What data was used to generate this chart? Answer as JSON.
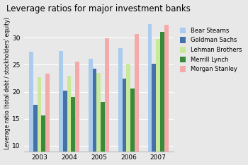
{
  "title": "Leverage ratios for major investment banks",
  "ylabel": "Leverage ratio (total debt / stockholders' equity)",
  "years": [
    2003,
    2004,
    2005,
    2006,
    2007
  ],
  "companies": [
    "Bear Stearns",
    "Goldman Sachs",
    "Lehman Brothers",
    "Merrill Lynch",
    "Morgan Stanley"
  ],
  "colors": [
    "#aaccee",
    "#4472a8",
    "#c8e89a",
    "#3a8a3a",
    "#f4aaaa"
  ],
  "data": {
    "Bear Stearns": [
      27.4,
      27.5,
      26.1,
      28.0,
      32.5
    ],
    "Goldman Sachs": [
      17.6,
      20.2,
      24.2,
      22.4,
      25.2
    ],
    "Lehman Brothers": [
      22.7,
      23.0,
      23.5,
      25.2,
      29.7
    ],
    "Merrill Lynch": [
      15.6,
      19.0,
      18.1,
      20.6,
      31.0
    ],
    "Morgan Stanley": [
      23.4,
      25.5,
      29.9,
      30.7,
      32.4
    ]
  },
  "ylim": [
    9,
    34
  ],
  "yticks": [
    10,
    15,
    20,
    25,
    30
  ],
  "background_color": "#e8e8e8",
  "grid_color": "#ffffff",
  "bar_width": 0.14,
  "legend_fontsize": 6.0,
  "title_fontsize": 8.5,
  "ylabel_fontsize": 5.5,
  "tick_fontsize": 6.5
}
